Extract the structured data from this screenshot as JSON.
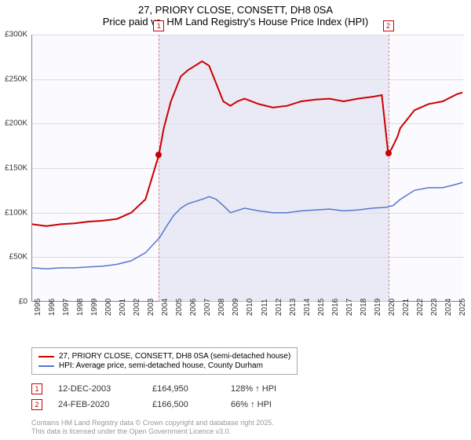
{
  "title": "27, PRIORY CLOSE, CONSETT, DH8 0SA",
  "subtitle": "Price paid vs. HM Land Registry's House Price Index (HPI)",
  "chart": {
    "type": "line",
    "background_color": "#fafaff",
    "highlight_color": "#e0e0f0",
    "grid_color": "#dddddd",
    "xlim": [
      1995,
      2025.5
    ],
    "ylim": [
      0,
      300000
    ],
    "ytick_step": 50000,
    "yticks": [
      "£0",
      "£50K",
      "£100K",
      "£150K",
      "£200K",
      "£250K",
      "£300K"
    ],
    "xticks": [
      1995,
      1996,
      1997,
      1998,
      1999,
      2000,
      2001,
      2002,
      2003,
      2004,
      2005,
      2006,
      2007,
      2008,
      2009,
      2010,
      2011,
      2012,
      2013,
      2014,
      2015,
      2016,
      2017,
      2018,
      2019,
      2020,
      2021,
      2022,
      2023,
      2024,
      2025
    ],
    "series": [
      {
        "name": "price_paid",
        "label": "27, PRIORY CLOSE, CONSETT, DH8 0SA (semi-detached house)",
        "color": "#cc0000",
        "width": 2,
        "data": [
          [
            1995,
            87000
          ],
          [
            1996,
            85000
          ],
          [
            1997,
            87000
          ],
          [
            1998,
            88000
          ],
          [
            1999,
            90000
          ],
          [
            2000,
            91000
          ],
          [
            2001,
            93000
          ],
          [
            2002,
            100000
          ],
          [
            2003,
            115000
          ],
          [
            2003.95,
            164950
          ],
          [
            2004.3,
            195000
          ],
          [
            2004.8,
            225000
          ],
          [
            2005.5,
            253000
          ],
          [
            2006,
            260000
          ],
          [
            2006.5,
            265000
          ],
          [
            2007,
            270000
          ],
          [
            2007.5,
            265000
          ],
          [
            2008,
            245000
          ],
          [
            2008.5,
            225000
          ],
          [
            2009,
            220000
          ],
          [
            2009.5,
            225000
          ],
          [
            2010,
            228000
          ],
          [
            2011,
            222000
          ],
          [
            2012,
            218000
          ],
          [
            2013,
            220000
          ],
          [
            2014,
            225000
          ],
          [
            2015,
            227000
          ],
          [
            2016,
            228000
          ],
          [
            2017,
            225000
          ],
          [
            2018,
            228000
          ],
          [
            2019,
            230000
          ],
          [
            2019.7,
            232000
          ],
          [
            2020.15,
            166500
          ],
          [
            2020.4,
            172000
          ],
          [
            2020.8,
            185000
          ],
          [
            2021,
            195000
          ],
          [
            2021.5,
            205000
          ],
          [
            2022,
            215000
          ],
          [
            2023,
            222000
          ],
          [
            2024,
            225000
          ],
          [
            2025,
            233000
          ],
          [
            2025.4,
            235000
          ]
        ]
      },
      {
        "name": "hpi",
        "label": "HPI: Average price, semi-detached house, County Durham",
        "color": "#5577cc",
        "width": 1.5,
        "data": [
          [
            1995,
            38000
          ],
          [
            1996,
            37000
          ],
          [
            1997,
            38000
          ],
          [
            1998,
            38000
          ],
          [
            1999,
            39000
          ],
          [
            2000,
            40000
          ],
          [
            2001,
            42000
          ],
          [
            2002,
            46000
          ],
          [
            2003,
            55000
          ],
          [
            2004,
            72000
          ],
          [
            2004.5,
            85000
          ],
          [
            2005,
            97000
          ],
          [
            2005.5,
            105000
          ],
          [
            2006,
            110000
          ],
          [
            2007,
            115000
          ],
          [
            2007.5,
            118000
          ],
          [
            2008,
            115000
          ],
          [
            2008.5,
            108000
          ],
          [
            2009,
            100000
          ],
          [
            2010,
            105000
          ],
          [
            2011,
            102000
          ],
          [
            2012,
            100000
          ],
          [
            2013,
            100000
          ],
          [
            2014,
            102000
          ],
          [
            2015,
            103000
          ],
          [
            2016,
            104000
          ],
          [
            2017,
            102000
          ],
          [
            2018,
            103000
          ],
          [
            2019,
            105000
          ],
          [
            2020,
            106000
          ],
          [
            2020.5,
            108000
          ],
          [
            2021,
            115000
          ],
          [
            2022,
            125000
          ],
          [
            2023,
            128000
          ],
          [
            2024,
            128000
          ],
          [
            2025,
            132000
          ],
          [
            2025.4,
            134000
          ]
        ]
      }
    ],
    "band": {
      "start": 2003.95,
      "end": 2020.15
    },
    "markers": [
      {
        "num": "1",
        "x": 2003.95,
        "y": 164950
      },
      {
        "num": "2",
        "x": 2020.15,
        "y": 166500
      }
    ]
  },
  "legend": {
    "items": [
      {
        "color": "#cc0000",
        "label": "27, PRIORY CLOSE, CONSETT, DH8 0SA (semi-detached house)"
      },
      {
        "color": "#5577cc",
        "label": "HPI: Average price, semi-detached house, County Durham"
      }
    ]
  },
  "events": [
    {
      "num": "1",
      "date": "12-DEC-2003",
      "price": "£164,950",
      "change": "128% ↑ HPI"
    },
    {
      "num": "2",
      "date": "24-FEB-2020",
      "price": "£166,500",
      "change": "66% ↑ HPI"
    }
  ],
  "footer": {
    "line1": "Contains HM Land Registry data © Crown copyright and database right 2025.",
    "line2": "This data is licensed under the Open Government Licence v3.0."
  }
}
